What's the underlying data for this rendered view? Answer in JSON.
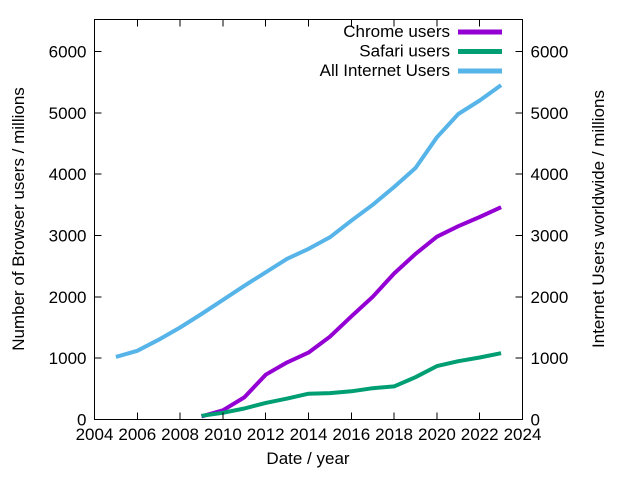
{
  "chart_data": {
    "type": "line",
    "title": "",
    "xlabel": "Date / year",
    "ylabel_left": "Number of Browser users / millions",
    "ylabel_right": "Internet Users worldwide / millions",
    "xlim": [
      2004,
      2024
    ],
    "ylim": [
      0,
      6520
    ],
    "x_ticks": [
      2004,
      2006,
      2008,
      2010,
      2012,
      2014,
      2016,
      2018,
      2020,
      2022,
      2024
    ],
    "y_ticks_left": [
      0,
      1000,
      2000,
      3000,
      4000,
      5000,
      6000
    ],
    "y_ticks_right": [
      0,
      1000,
      2000,
      3000,
      4000,
      5000,
      6000
    ],
    "grid": false,
    "legend_position": "top-right-inside",
    "axis_color": "#000000",
    "right_tick_label_color": "#56b4e9",
    "series": [
      {
        "name": "Chrome users",
        "color": "#9400d3",
        "x": [
          2009,
          2010,
          2011,
          2012,
          2013,
          2014,
          2015,
          2016,
          2017,
          2018,
          2019,
          2020,
          2021,
          2022,
          2023
        ],
        "y": [
          50,
          150,
          360,
          730,
          930,
          1090,
          1350,
          1680,
          2000,
          2380,
          2700,
          2980,
          3150,
          3300,
          3460
        ]
      },
      {
        "name": "Safari users",
        "color": "#009e73",
        "x": [
          2009,
          2010,
          2011,
          2012,
          2013,
          2014,
          2015,
          2016,
          2017,
          2018,
          2019,
          2020,
          2021,
          2022,
          2023
        ],
        "y": [
          60,
          110,
          180,
          270,
          340,
          420,
          430,
          460,
          510,
          540,
          690,
          870,
          950,
          1010,
          1080
        ]
      },
      {
        "name": "All Internet Users",
        "color": "#56b4e9",
        "x": [
          2005,
          2006,
          2007,
          2008,
          2009,
          2010,
          2011,
          2012,
          2013,
          2014,
          2015,
          2016,
          2017,
          2018,
          2019,
          2020,
          2021,
          2022,
          2023
        ],
        "y": [
          1020,
          1120,
          1300,
          1500,
          1720,
          1950,
          2180,
          2400,
          2620,
          2780,
          2970,
          3240,
          3500,
          3790,
          4100,
          4600,
          4980,
          5200,
          5450
        ]
      }
    ]
  }
}
